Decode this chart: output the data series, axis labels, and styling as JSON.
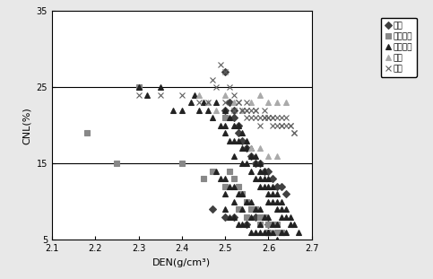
{
  "xlabel": "DEN(g/cm³)",
  "ylabel": "CNL(%)",
  "xlim": [
    2.1,
    2.7
  ],
  "ylim": [
    5,
    35
  ],
  "hlines": [
    15,
    25
  ],
  "xticks": [
    2.1,
    2.2,
    2.3,
    2.4,
    2.5,
    2.6,
    2.7
  ],
  "yticks": [
    5,
    15,
    25,
    35
  ],
  "legend_labels": [
    "礁岩",
    "礁状砂岩",
    "含礁砂岩",
    "砂岩",
    "泥岩"
  ],
  "background_color": "#e8e8e8",
  "plot_bg_color": "#ffffff",
  "series": {
    "pebbly_rock": {
      "color": "#404040",
      "marker": "D",
      "markersize": 4,
      "x": [
        2.5,
        2.5,
        2.51,
        2.52,
        2.52,
        2.53,
        2.53,
        2.54,
        2.55,
        2.56,
        2.57,
        2.58,
        2.59,
        2.6,
        2.61,
        2.62,
        2.63,
        2.64,
        2.5,
        2.55,
        2.6,
        2.47,
        2.52,
        2.57
      ],
      "y": [
        27,
        22,
        23,
        22,
        21,
        20,
        19,
        18,
        17,
        16,
        15,
        15,
        14,
        14,
        13,
        12,
        12,
        11,
        8,
        7,
        7,
        9,
        8,
        8
      ]
    },
    "pebbly_sandstone": {
      "color": "#888888",
      "marker": "s",
      "markersize": 5,
      "x": [
        2.18,
        2.25,
        2.3,
        2.4,
        2.45,
        2.47,
        2.5,
        2.51,
        2.52,
        2.53,
        2.54,
        2.55,
        2.56,
        2.57,
        2.58,
        2.59,
        2.6,
        2.61,
        2.62,
        2.63,
        2.5,
        2.53,
        2.55,
        2.58,
        2.6,
        2.62
      ],
      "y": [
        19,
        15,
        25,
        15,
        13,
        14,
        21,
        14,
        13,
        12,
        11,
        10,
        9,
        9,
        8,
        8,
        7,
        7,
        7,
        6,
        12,
        9,
        8,
        7,
        6,
        6
      ]
    },
    "gravelly_sandstone": {
      "color": "#222222",
      "marker": "^",
      "markersize": 5,
      "x": [
        2.3,
        2.32,
        2.35,
        2.38,
        2.4,
        2.42,
        2.43,
        2.44,
        2.45,
        2.46,
        2.47,
        2.48,
        2.49,
        2.5,
        2.5,
        2.5,
        2.51,
        2.51,
        2.52,
        2.52,
        2.52,
        2.53,
        2.53,
        2.54,
        2.54,
        2.54,
        2.55,
        2.55,
        2.55,
        2.56,
        2.56,
        2.56,
        2.57,
        2.57,
        2.57,
        2.58,
        2.58,
        2.58,
        2.58,
        2.59,
        2.59,
        2.59,
        2.6,
        2.6,
        2.6,
        2.6,
        2.61,
        2.61,
        2.61,
        2.62,
        2.62,
        2.62,
        2.63,
        2.63,
        2.63,
        2.64,
        2.64,
        2.65,
        2.65,
        2.66,
        2.67,
        2.48,
        2.5,
        2.52,
        2.54,
        2.56,
        2.58,
        2.6,
        2.62,
        2.64,
        2.49,
        2.51,
        2.53,
        2.55,
        2.57,
        2.59,
        2.61,
        2.63,
        2.5,
        2.52,
        2.54,
        2.56,
        2.58,
        2.6,
        2.51,
        2.53,
        2.55,
        2.57,
        2.59,
        2.61,
        2.5,
        2.52,
        2.54,
        2.56,
        2.58,
        2.6,
        2.62
      ],
      "y": [
        25,
        24,
        25,
        22,
        22,
        23,
        24,
        22,
        23,
        22,
        21,
        23,
        20,
        22,
        20,
        19,
        21,
        18,
        20,
        18,
        16,
        20,
        18,
        19,
        17,
        15,
        18,
        17,
        15,
        17,
        16,
        14,
        16,
        15,
        13,
        15,
        14,
        13,
        12,
        14,
        13,
        12,
        13,
        12,
        11,
        10,
        12,
        11,
        10,
        11,
        10,
        9,
        10,
        9,
        8,
        9,
        8,
        8,
        7,
        7,
        6,
        14,
        13,
        12,
        11,
        10,
        9,
        8,
        7,
        6,
        13,
        12,
        11,
        10,
        9,
        8,
        7,
        6,
        9,
        8,
        7,
        6,
        6,
        6,
        8,
        7,
        7,
        6,
        6,
        6,
        11,
        10,
        9,
        8,
        7,
        6,
        5
      ]
    },
    "sandstone": {
      "color": "#aaaaaa",
      "marker": "^",
      "markersize": 5,
      "x": [
        2.44,
        2.46,
        2.48,
        2.5,
        2.52,
        2.54,
        2.56,
        2.58,
        2.6,
        2.62,
        2.64,
        2.56,
        2.58,
        2.6,
        2.62
      ],
      "y": [
        24,
        23,
        22,
        24,
        23,
        22,
        23,
        24,
        23,
        23,
        23,
        17,
        17,
        16,
        16
      ]
    },
    "mudstone": {
      "color": "#606060",
      "marker": "x",
      "markersize": 5,
      "x": [
        2.3,
        2.35,
        2.4,
        2.44,
        2.46,
        2.47,
        2.48,
        2.49,
        2.5,
        2.5,
        2.51,
        2.52,
        2.52,
        2.53,
        2.54,
        2.55,
        2.55,
        2.56,
        2.57,
        2.58,
        2.59,
        2.6,
        2.61,
        2.62,
        2.63,
        2.64,
        2.65,
        2.66,
        2.54,
        2.56,
        2.58,
        2.6,
        2.62,
        2.64,
        2.66,
        2.53,
        2.55,
        2.57,
        2.59,
        2.61,
        2.63,
        2.65,
        2.55,
        2.57,
        2.59,
        2.61,
        2.63
      ],
      "y": [
        24,
        24,
        24,
        23,
        23,
        26,
        25,
        28,
        27,
        23,
        25,
        24,
        22,
        23,
        22,
        22,
        21,
        21,
        21,
        20,
        21,
        21,
        20,
        21,
        20,
        21,
        20,
        19,
        22,
        22,
        21,
        21,
        20,
        20,
        19,
        23,
        22,
        22,
        21,
        21,
        20,
        20,
        23,
        22,
        22,
        21,
        21
      ]
    }
  }
}
